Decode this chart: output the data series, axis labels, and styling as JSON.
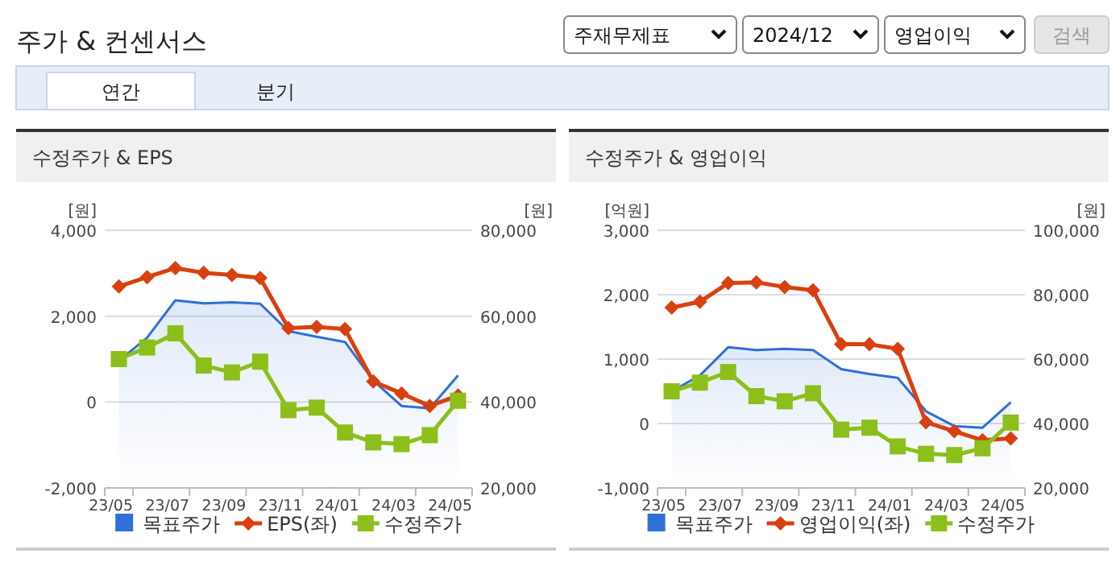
{
  "chart_data": [
    {
      "type": "other",
      "title": "주가 & 컨센서스",
      "annotations": [
        "주재무제표",
        "2024/12",
        "영업이익",
        "검색",
        "연간",
        "분기"
      ]
    },
    {
      "type": "line",
      "title": "수정주가 & EPS",
      "ylabel": "[원]",
      "y2label": "[원]",
      "categories": [
        "23/05",
        null,
        "23/07",
        null,
        "23/09",
        null,
        "23/11",
        null,
        "24/01",
        null,
        "24/03",
        null,
        "24/05"
      ],
      "ylim": [
        -2000,
        4000
      ],
      "yticks": [
        {
          "value": -2000,
          "label": "-2,000"
        },
        {
          "value": 0,
          "label": "0"
        },
        {
          "value": 2000,
          "label": "2,000"
        },
        {
          "value": 4000,
          "label": "4,000"
        }
      ],
      "y2lim": [
        20000,
        80000
      ],
      "y2ticks": [
        {
          "value": 20000,
          "label": "20,000"
        },
        {
          "value": 40000,
          "label": "40,000"
        },
        {
          "value": 60000,
          "label": "60,000"
        },
        {
          "value": 80000,
          "label": "80,000"
        }
      ],
      "grid": "y",
      "legend": "bottom",
      "series": [
        {
          "name": "목표주가",
          "type": "area",
          "axis": "y2",
          "color": "#2f6fd8",
          "marker": "none",
          "values": [
            49600,
            55000,
            63700,
            63000,
            63200,
            62900,
            56500,
            55200,
            54000,
            45000,
            39100,
            38500,
            46200
          ]
        },
        {
          "name": "EPS(좌)",
          "type": "line",
          "color": "#d9400f",
          "marker": "diamond",
          "values": [
            2690,
            2910,
            3120,
            3010,
            2960,
            2890,
            1720,
            1750,
            1700,
            480,
            200,
            -90,
            150
          ]
        },
        {
          "name": "수정주가",
          "type": "line",
          "axis": "y2",
          "color": "#8cbf1a",
          "marker": "square",
          "values": [
            50000,
            52700,
            56000,
            48500,
            46900,
            49400,
            38100,
            38700,
            32900,
            30600,
            30200,
            32300,
            40300
          ]
        }
      ]
    },
    {
      "type": "line",
      "title": "수정주가 & 영업이익",
      "ylabel": "[억원]",
      "y2label": "[원]",
      "categories": [
        "23/05",
        null,
        "23/07",
        null,
        "23/09",
        null,
        "23/11",
        null,
        "24/01",
        null,
        "24/03",
        null,
        "24/05"
      ],
      "ylim": [
        -1000,
        3000
      ],
      "yticks": [
        {
          "value": -1000,
          "label": "-1,000"
        },
        {
          "value": 0,
          "label": "0"
        },
        {
          "value": 1000,
          "label": "1,000"
        },
        {
          "value": 2000,
          "label": "2,000"
        },
        {
          "value": 3000,
          "label": "3,000"
        }
      ],
      "y2lim": [
        20000,
        100000
      ],
      "y2ticks": [
        {
          "value": 20000,
          "label": "20,000"
        },
        {
          "value": 40000,
          "label": "40,000"
        },
        {
          "value": 60000,
          "label": "60,000"
        },
        {
          "value": 80000,
          "label": "80,000"
        },
        {
          "value": 100000,
          "label": "100,000"
        }
      ],
      "grid": "y",
      "legend": "bottom",
      "series": [
        {
          "name": "목표주가",
          "type": "area",
          "axis": "y2",
          "color": "#2f6fd8",
          "marker": "none",
          "values": [
            50000,
            54900,
            63700,
            62800,
            63200,
            62800,
            56900,
            55400,
            54200,
            43800,
            39200,
            38700,
            46600
          ]
        },
        {
          "name": "영업이익(좌)",
          "type": "line",
          "color": "#d9400f",
          "marker": "diamond",
          "values": [
            1800,
            1890,
            2180,
            2190,
            2120,
            2070,
            1230,
            1230,
            1160,
            20,
            -120,
            -260,
            -230
          ]
        },
        {
          "name": "수정주가",
          "type": "line",
          "axis": "y2",
          "color": "#8cbf1a",
          "marker": "square",
          "values": [
            50000,
            52700,
            56000,
            48500,
            46900,
            49400,
            38100,
            38700,
            32900,
            30600,
            30200,
            32300,
            40300
          ]
        }
      ]
    }
  ]
}
